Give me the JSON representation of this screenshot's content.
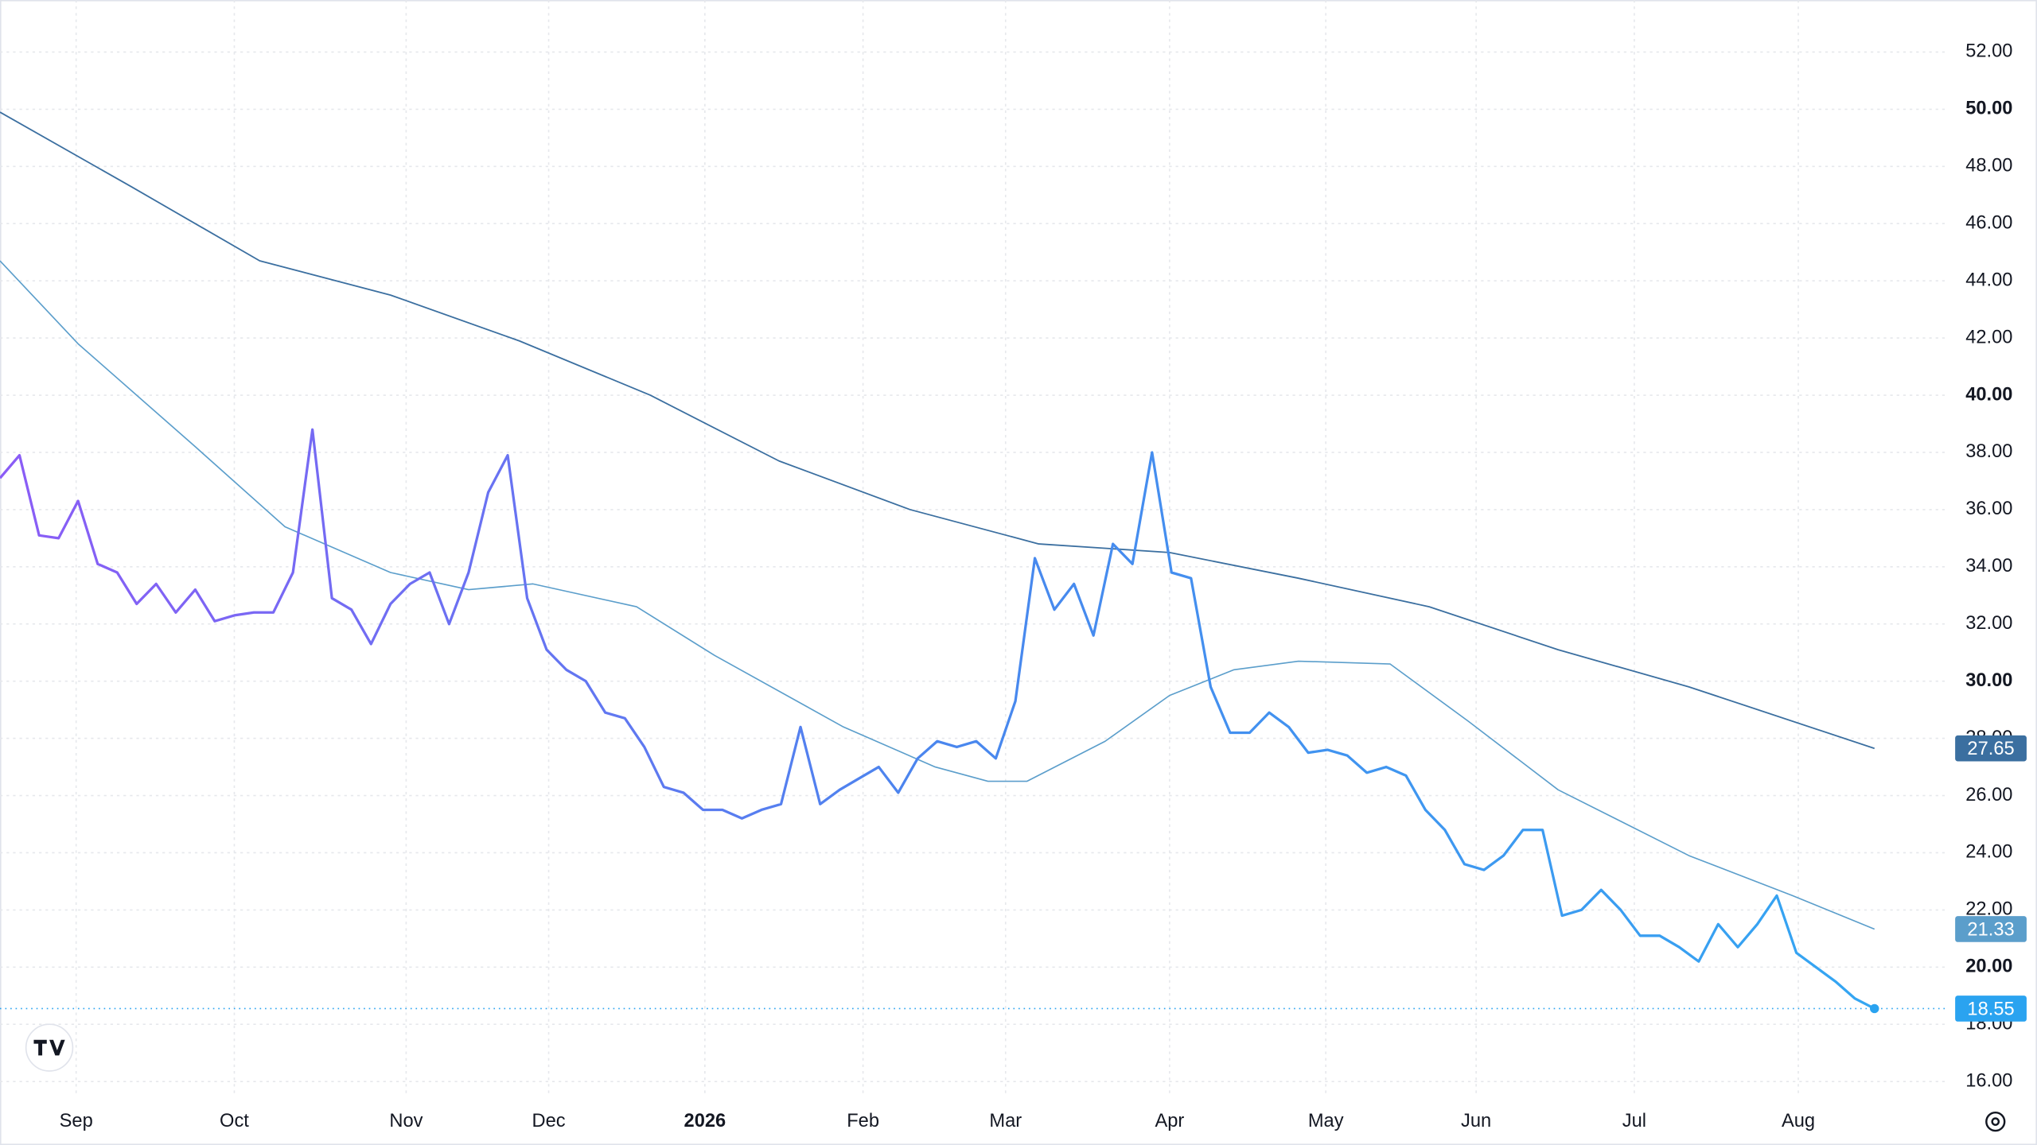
{
  "chart_data": {
    "type": "line",
    "xlim": [
      0,
      99.8
    ],
    "xticks": [
      {
        "value": 3.9,
        "label": "Sep"
      },
      {
        "value": 12,
        "label": "Oct"
      },
      {
        "value": 20.8,
        "label": "Nov"
      },
      {
        "value": 28.1,
        "label": "Dec"
      },
      {
        "value": 36.1,
        "label": "2026"
      },
      {
        "value": 44.2,
        "label": "Feb"
      },
      {
        "value": 51.5,
        "label": "Mar"
      },
      {
        "value": 59.9,
        "label": "Apr"
      },
      {
        "value": 67.9,
        "label": "May"
      },
      {
        "value": 75.6,
        "label": "Jun"
      },
      {
        "value": 83.7,
        "label": "Jul"
      },
      {
        "value": 92.1,
        "label": "Aug"
      }
    ],
    "ylim": [
      15.46,
      53.82
    ],
    "yticks": [
      {
        "value": 16,
        "label": "16.00"
      },
      {
        "value": 18,
        "label": "18.00"
      },
      {
        "value": 20,
        "label": "20.00"
      },
      {
        "value": 22,
        "label": "22.00"
      },
      {
        "value": 24,
        "label": "24.00"
      },
      {
        "value": 26,
        "label": "26.00"
      },
      {
        "value": 28,
        "label": "28.00"
      },
      {
        "value": 30,
        "label": "30.00"
      },
      {
        "value": 32,
        "label": "32.00"
      },
      {
        "value": 34,
        "label": "34.00"
      },
      {
        "value": 36,
        "label": "36.00"
      },
      {
        "value": 38,
        "label": "38.00"
      },
      {
        "value": 40,
        "label": "40.00"
      },
      {
        "value": 42,
        "label": "42.00"
      },
      {
        "value": 44,
        "label": "44.00"
      },
      {
        "value": 46,
        "label": "46.00"
      },
      {
        "value": 48,
        "label": "48.00"
      },
      {
        "value": 50,
        "label": "50.00"
      },
      {
        "value": 52,
        "label": "52.00"
      }
    ],
    "grid": true,
    "series": [
      {
        "color": "#3b6fa0",
        "width": 1.1,
        "x": [
          0,
          6.7,
          13.3,
          20,
          26.6,
          33.3,
          39.9,
          46.6,
          53.2,
          59.9,
          66.5,
          73.2,
          79.8,
          86.5,
          96
        ],
        "values": [
          49.9,
          47.3,
          44.7,
          43.5,
          41.9,
          40.0,
          37.7,
          36.0,
          34.8,
          34.5,
          33.6,
          32.6,
          31.1,
          29.8,
          27.65
        ]
      },
      {
        "color": "#5b9ecb",
        "width": 1,
        "x": [
          0,
          4,
          10,
          14.6,
          20,
          24,
          27.3,
          32.6,
          36.6,
          43.2,
          47.9,
          50.6,
          52.6,
          56.6,
          59.9,
          63.2,
          66.5,
          71.2,
          75.2,
          79.8,
          86.5,
          91.8,
          96
        ],
        "values": [
          44.7,
          41.8,
          38.2,
          35.4,
          33.8,
          33.2,
          33.4,
          32.6,
          30.9,
          28.4,
          27.0,
          26.5,
          26.5,
          27.9,
          29.5,
          30.4,
          30.7,
          30.6,
          28.6,
          26.2,
          23.9,
          22.5,
          21.33
        ]
      },
      {
        "color": "#2aa3f0",
        "width": 2,
        "gradient": [
          "#8b5cf6",
          "#4a86ee",
          "#34a6f2"
        ],
        "values": [
          37.1,
          37.9,
          35.1,
          35.0,
          36.3,
          34.1,
          33.8,
          32.7,
          33.4,
          32.4,
          33.2,
          32.1,
          32.3,
          32.4,
          32.4,
          33.8,
          38.8,
          32.9,
          32.5,
          31.3,
          32.7,
          33.4,
          33.8,
          32.0,
          33.8,
          36.6,
          37.9,
          32.9,
          31.1,
          30.4,
          30.0,
          28.9,
          28.7,
          27.7,
          26.3,
          26.1,
          25.5,
          25.5,
          25.2,
          25.5,
          25.7,
          28.4,
          25.7,
          26.2,
          26.6,
          27.0,
          26.1,
          27.3,
          27.9,
          27.7,
          27.9,
          27.3,
          29.3,
          34.3,
          32.5,
          33.4,
          31.6,
          34.8,
          34.1,
          38.0,
          33.8,
          33.6,
          29.8,
          28.2,
          28.2,
          28.9,
          28.4,
          27.5,
          27.6,
          27.4,
          26.8,
          27.0,
          26.7,
          25.5,
          24.8,
          23.6,
          23.4,
          23.9,
          24.8,
          24.8,
          21.8,
          22.0,
          22.7,
          22.0,
          21.1,
          21.1,
          20.7,
          20.2,
          21.5,
          20.7,
          21.5,
          22.5,
          20.5,
          20.0,
          19.5,
          18.9,
          18.55
        ]
      }
    ]
  }
}
